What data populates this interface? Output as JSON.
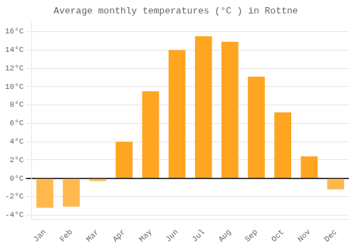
{
  "chart_data": {
    "type": "bar",
    "title": "Average monthly temperatures (°C ) in Rottne",
    "categories": [
      "Jan",
      "Feb",
      "Mar",
      "Apr",
      "May",
      "Jun",
      "Jul",
      "Aug",
      "Sep",
      "Oct",
      "Nov",
      "Dec"
    ],
    "values": [
      -3.2,
      -3.1,
      -0.3,
      4.0,
      9.5,
      14.0,
      15.5,
      14.9,
      11.1,
      7.2,
      2.4,
      -1.2
    ],
    "colors": [
      "#FFB84D",
      "#FFB84D",
      "#FFB84D",
      "#FFA520",
      "#FFA520",
      "#FFA520",
      "#FFA520",
      "#FFA520",
      "#FFA520",
      "#FFA520",
      "#FFA520",
      "#FFB84D"
    ],
    "ylim": [
      -4.5,
      17.0
    ],
    "yticks": [
      {
        "value": -4,
        "label": "-4°C"
      },
      {
        "value": -2,
        "label": "-2°C"
      },
      {
        "value": 0,
        "label": "0°C"
      },
      {
        "value": 2,
        "label": "2°C"
      },
      {
        "value": 4,
        "label": "4°C"
      },
      {
        "value": 6,
        "label": "6°C"
      },
      {
        "value": 8,
        "label": "8°C"
      },
      {
        "value": 10,
        "label": "10°C"
      },
      {
        "value": 12,
        "label": "12°C"
      },
      {
        "value": 14,
        "label": "14°C"
      },
      {
        "value": 16,
        "label": "16°C"
      }
    ],
    "grid": true
  }
}
